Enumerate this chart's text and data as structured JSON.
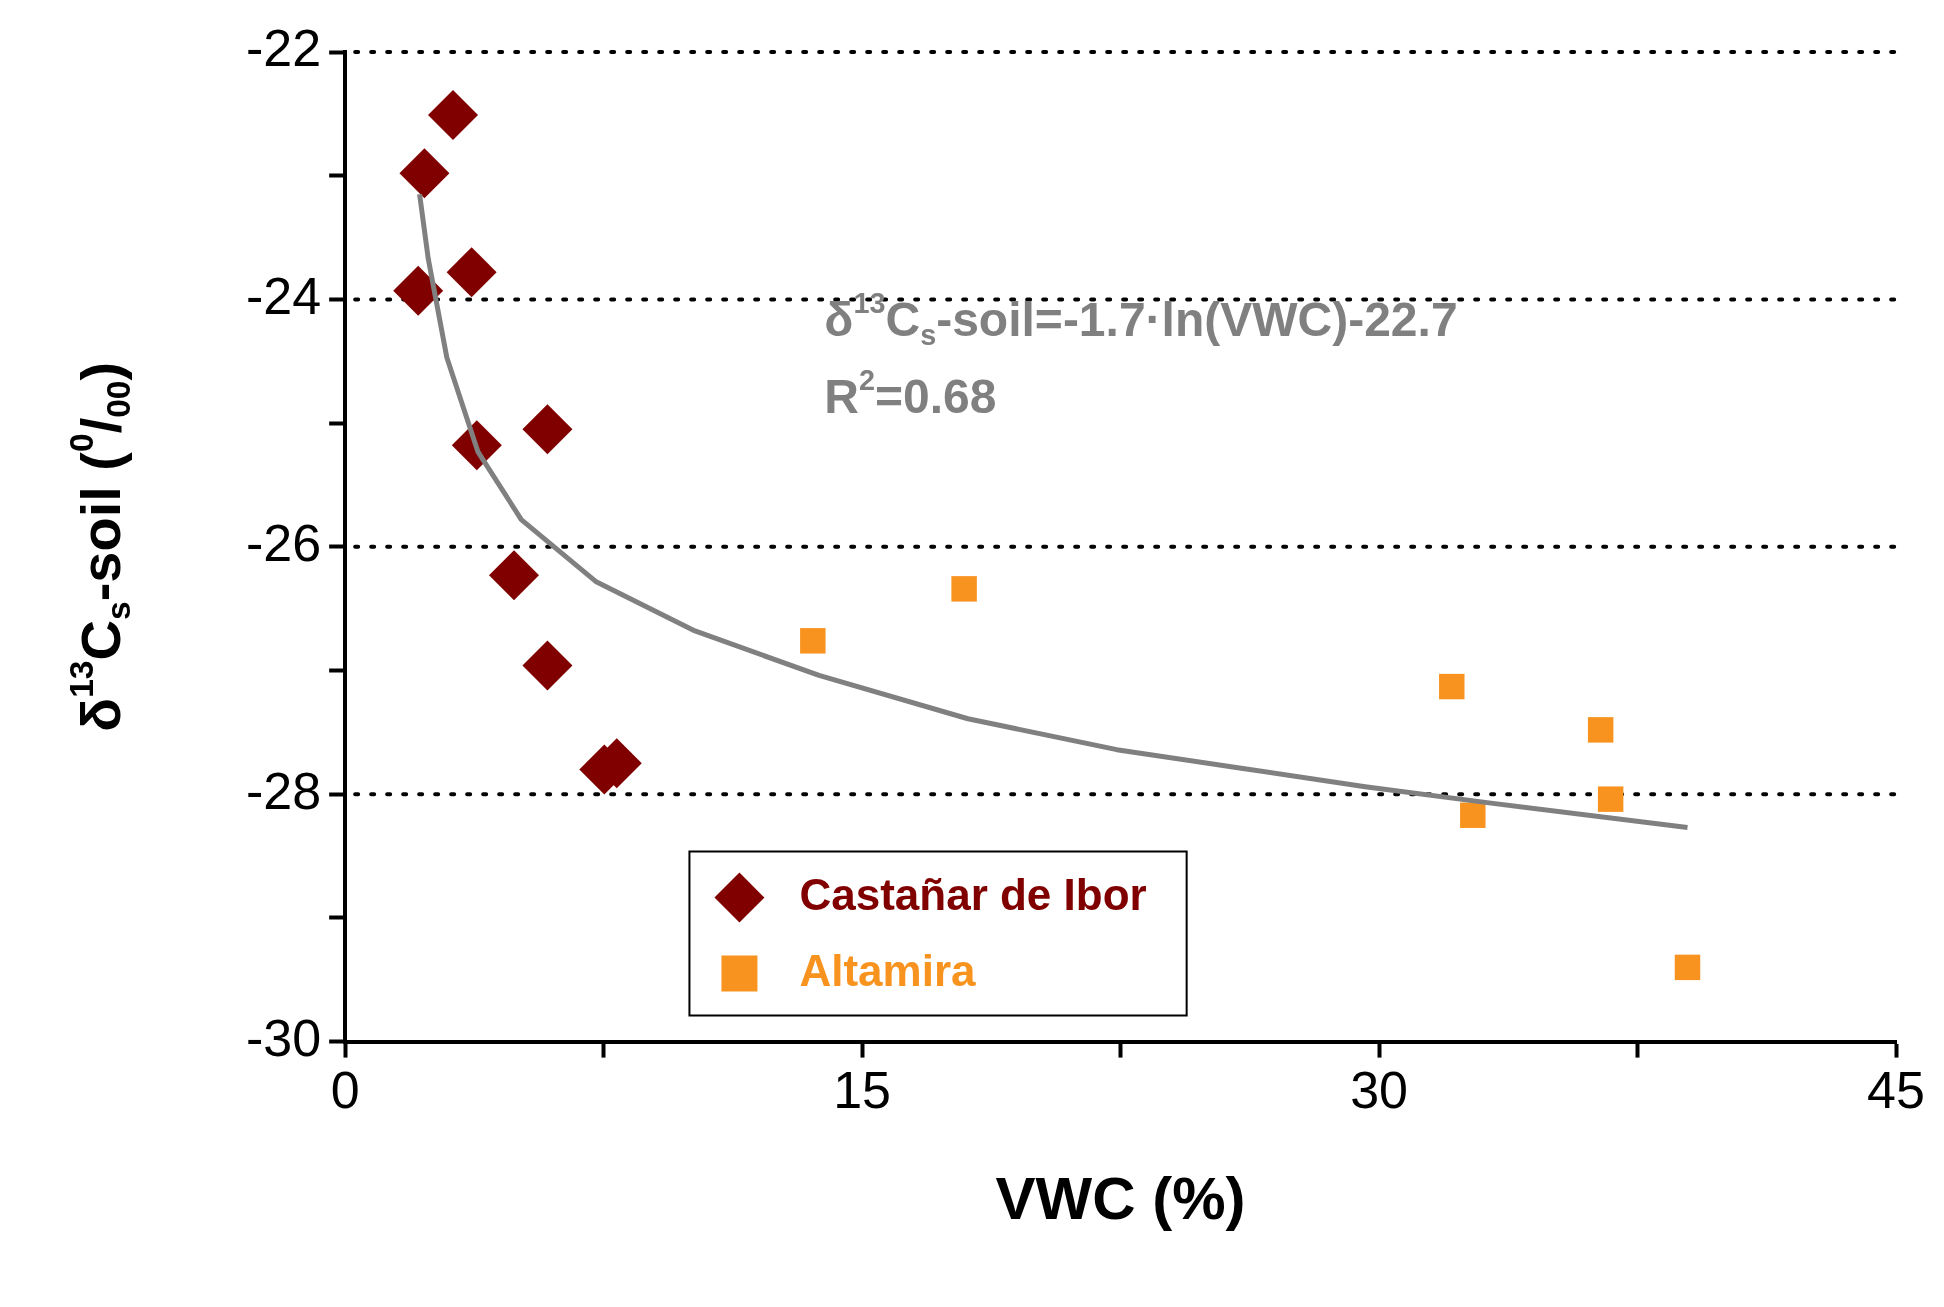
{
  "chart_data": {
    "type": "scatter",
    "xlabel": "VWC (%)",
    "ylabel": "δ$^{13}$C$_{s}$-soil ($^{0}$/$_{00}$)",
    "xlim": [
      0,
      45
    ],
    "xticks": [
      0,
      {
        "value": 7.5,
        "label": null
      },
      15,
      {
        "value": 22.5,
        "label": null
      },
      30,
      {
        "value": 37.5,
        "label": null
      },
      45
    ],
    "ylim": [
      -30,
      -22
    ],
    "yticks": [
      -30,
      {
        "value": -29,
        "label": null
      },
      -28,
      {
        "value": -27,
        "label": null
      },
      -26,
      {
        "value": -25,
        "label": null
      },
      -24,
      {
        "value": -23,
        "label": null
      },
      -22
    ],
    "grid": "y",
    "legend": "bottom",
    "annotations": [
      "δ$^{13}$C$_{s}$-soil=-1.7·ln(VWC)-22.7",
      "R$^{2}$=0.68"
    ],
    "series": [
      {
        "name": "Castañar de Ibor",
        "color": "#800000",
        "marker": "diamond",
        "x": [
          3.13,
          2.3,
          2.12,
          3.67,
          3.82,
          5.87,
          4.9,
          5.87,
          7.52,
          7.88
        ],
        "values": [
          -22.51,
          -22.98,
          -23.93,
          -23.78,
          -25.18,
          -25.05,
          -26.23,
          -26.96,
          -27.8,
          -27.75
        ]
      },
      {
        "name": "Altamira",
        "color": "#f7931e",
        "marker": "square",
        "x": [
          13.57,
          17.96,
          32.11,
          32.72,
          36.43,
          36.72,
          38.95
        ],
        "values": [
          -26.76,
          -26.34,
          -27.13,
          -28.17,
          -27.48,
          -28.04,
          -29.4
        ]
      },
      {
        "type": "line",
        "color": "#808080",
        "marker": "none",
        "x": [
          2.16,
          2.41,
          2.95,
          3.85,
          5.11,
          7.27,
          10.15,
          13.75,
          18.07,
          22.39,
          26.0,
          29.6,
          33.19,
          38.95
        ],
        "values": [
          -23.15,
          -23.67,
          -24.47,
          -25.23,
          -25.78,
          -26.28,
          -26.68,
          -27.04,
          -27.39,
          -27.64,
          -27.79,
          -27.94,
          -28.07,
          -28.27
        ]
      }
    ]
  }
}
